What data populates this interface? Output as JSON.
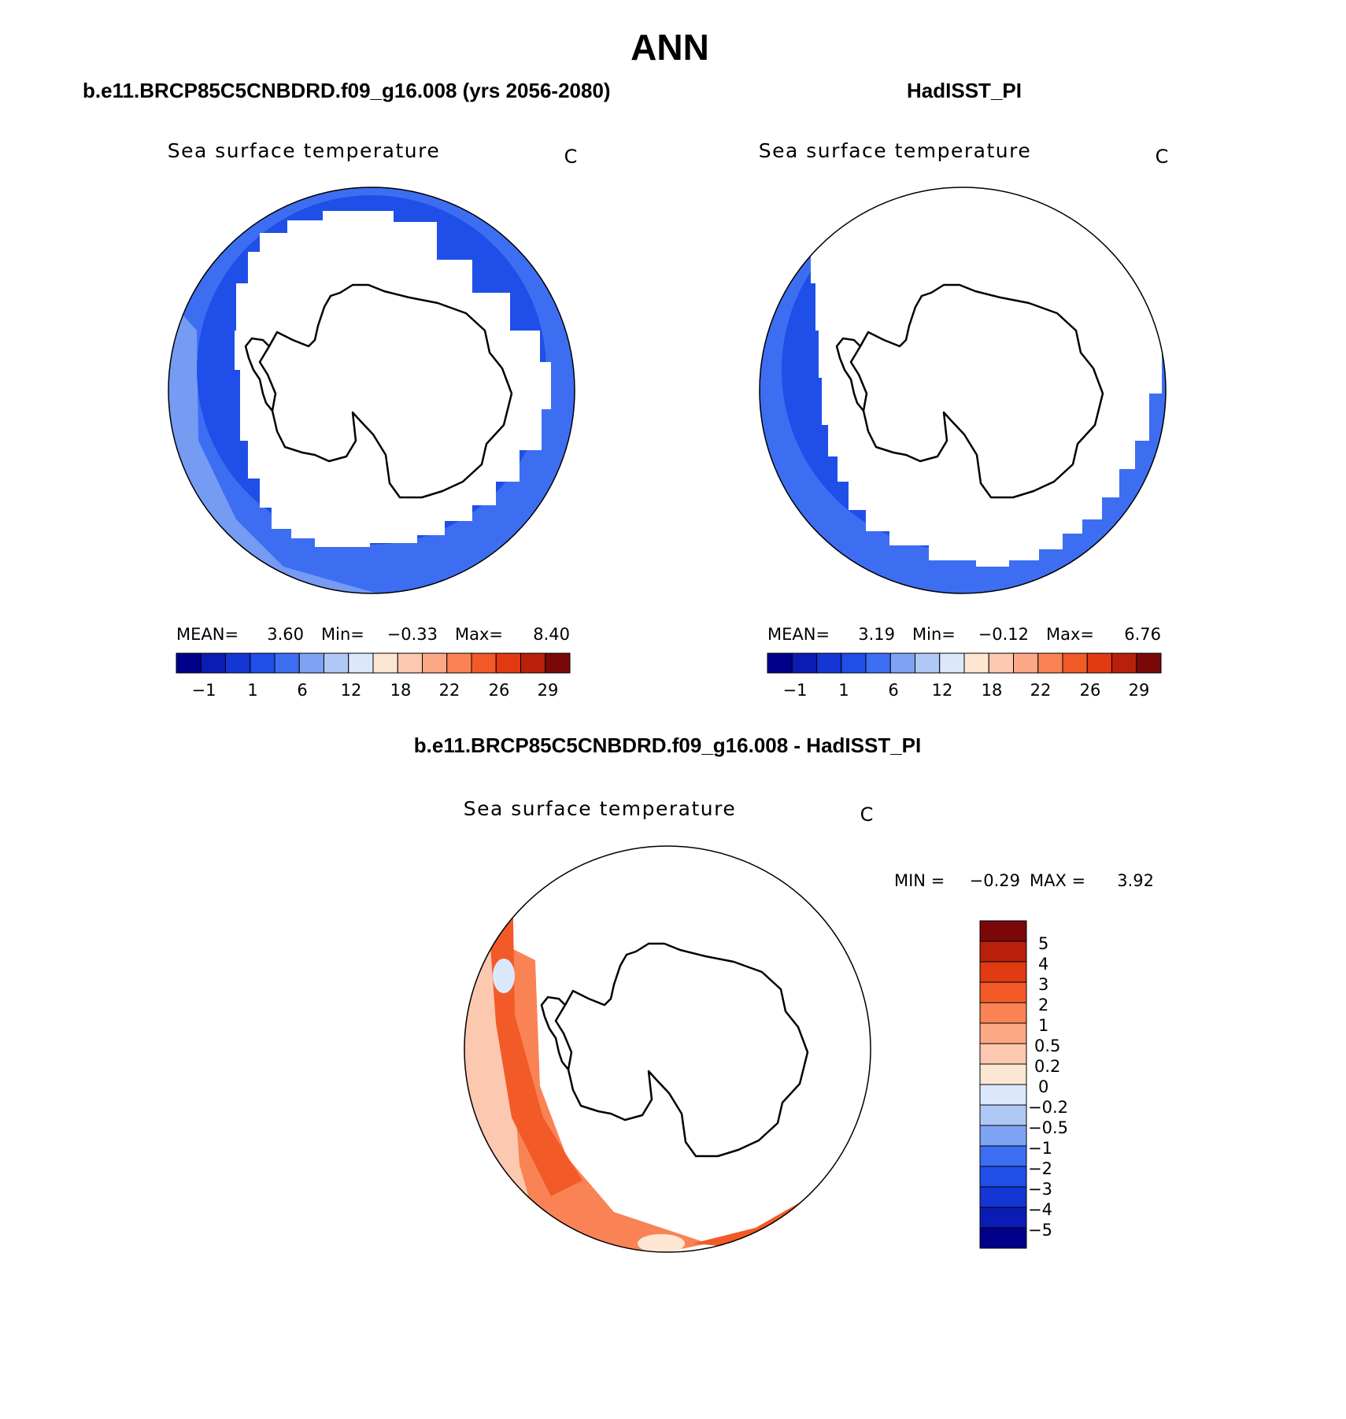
{
  "figure": {
    "season_title": "ANN",
    "colors": {
      "abs_palette": [
        "#00008b",
        "#0a1cb4",
        "#1436d4",
        "#1f4fe8",
        "#3d6ef2",
        "#7fa3f3",
        "#b0c8f5",
        "#dbe8fb",
        "#fde7d3",
        "#fcc8b0",
        "#fca887",
        "#f98355",
        "#f25a28",
        "#e03a12",
        "#b8200c",
        "#7a0808"
      ],
      "diff_palette": [
        "#00008b",
        "#0a1cb4",
        "#1436d4",
        "#1f4fe8",
        "#3d6ef2",
        "#7fa3f3",
        "#b0c8f5",
        "#dbe8fb",
        "#fde7d3",
        "#fcc8b0",
        "#fca887",
        "#f98355",
        "#f25a28",
        "#e03a12",
        "#b8200c",
        "#7a0808"
      ]
    },
    "panels": [
      {
        "id": "model",
        "header": "b.e11.BRCP85C5CNBDRD.f09_g16.008 (yrs 2056-2080)",
        "variable": "Sea surface temperature",
        "units": "C",
        "stats": {
          "mean_label": "MEAN=",
          "mean": "3.60",
          "min_label": "Min=",
          "min": "−0.33",
          "max_label": "Max=",
          "max": "8.40"
        },
        "ticks": [
          "−1",
          "1",
          "6",
          "12",
          "18",
          "22",
          "26",
          "29"
        ]
      },
      {
        "id": "obs",
        "header": "HadISST_PI",
        "variable": "Sea surface temperature",
        "units": "C",
        "stats": {
          "mean_label": "MEAN=",
          "mean": "3.19",
          "min_label": "Min=",
          "min": "−0.12",
          "max_label": "Max=",
          "max": "6.76"
        },
        "ticks": [
          "−1",
          "1",
          "6",
          "12",
          "18",
          "22",
          "26",
          "29"
        ]
      }
    ],
    "diff": {
      "header": "b.e11.BRCP85C5CNBDRD.f09_g16.008 - HadISST_PI",
      "variable": "Sea surface temperature",
      "units": "C",
      "stats": {
        "min_label": "MIN =",
        "min": "−0.29",
        "max_label": "MAX =",
        "max": "3.92"
      },
      "labels": [
        "5",
        "4",
        "3",
        "2",
        "1",
        "0.5",
        "0.2",
        "0",
        "−0.2",
        "−0.5",
        "−1",
        "−2",
        "−3",
        "−4",
        "−5"
      ]
    }
  }
}
